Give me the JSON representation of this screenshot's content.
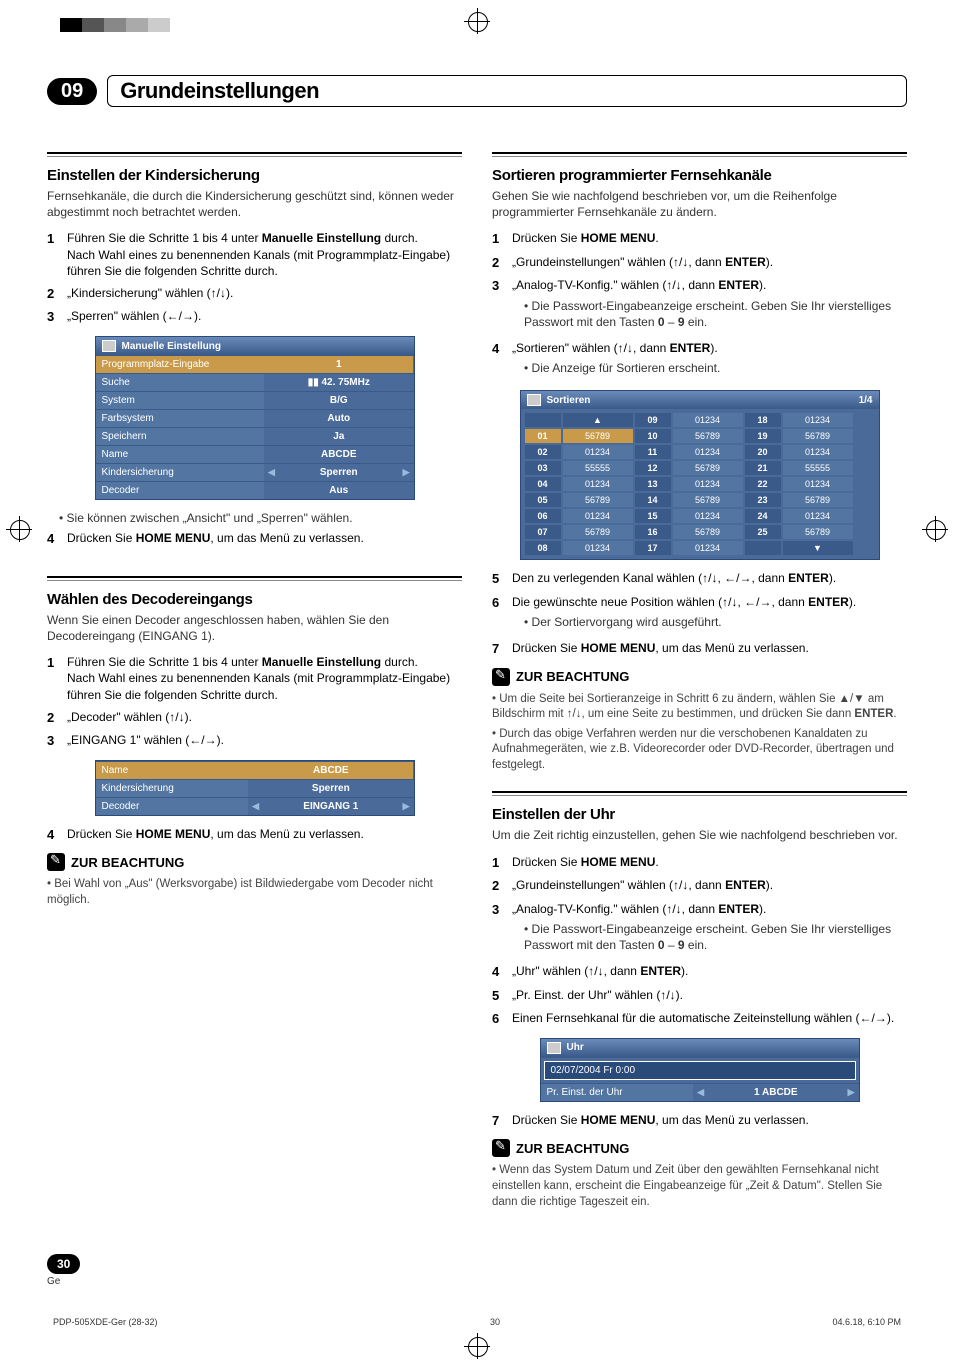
{
  "chapter": {
    "num": "09",
    "title": "Grundeinstellungen"
  },
  "left": {
    "sec1": {
      "title": "Einstellen der Kindersicherung",
      "intro": "Fernsehkanäle, die durch die Kindersicherung geschützt sind, können weder abgestimmt noch betrachtet werden.",
      "s1a": "Führen Sie die Schritte 1 bis 4 unter ",
      "s1b": "Manuelle Einstellung",
      "s1c": " durch.",
      "s1d": "Nach Wahl eines zu benennenden Kanals (mit Programmplatz-Eingabe) führen Sie die folgenden Schritte durch.",
      "s2": "„Kindersicherung\" wählen (↑/↓).",
      "s3": "„Sperren\" wählen (←/→).",
      "bul1": "Sie können zwischen „Ansicht\" und „Sperren\" wählen.",
      "s4a": "Drücken Sie ",
      "s4b": "HOME MENU",
      "s4c": ", um das Menü zu verlassen."
    },
    "osd1": {
      "title": "Manuelle Einstellung",
      "rows": [
        {
          "lbl": "Programmplatz-Eingabe",
          "val": "1",
          "hi": true
        },
        {
          "lbl": "Suche",
          "val": "▮▮   42. 75MHz"
        },
        {
          "lbl": "System",
          "val": "B/G"
        },
        {
          "lbl": "Farbsystem",
          "val": "Auto"
        },
        {
          "lbl": "Speichern",
          "val": "Ja"
        },
        {
          "lbl": "Name",
          "val": "ABCDE"
        },
        {
          "lbl": "Kindersicherung",
          "val": "Sperren",
          "arrows": true
        },
        {
          "lbl": "Decoder",
          "val": "Aus"
        }
      ]
    },
    "sec2": {
      "title": "Wählen des Decodereingangs",
      "intro": "Wenn Sie einen Decoder angeschlossen haben, wählen Sie den Decodereingang (EINGANG 1).",
      "s1a": "Führen Sie die Schritte 1 bis 4 unter ",
      "s1b": "Manuelle Einstellung",
      "s1c": " durch.",
      "s1d": "Nach Wahl eines zu benennenden Kanals (mit Programmplatz-Eingabe) führen Sie die folgenden Schritte durch.",
      "s2": "„Decoder\" wählen (↑/↓).",
      "s3": "„EINGANG 1\" wählen (←/→).",
      "s4a": "Drücken Sie ",
      "s4b": "HOME MENU",
      "s4c": ", um das Menü zu verlassen."
    },
    "osd2": {
      "rows": [
        {
          "lbl": "Name",
          "val": "ABCDE",
          "hi": true
        },
        {
          "lbl": "Kindersicherung",
          "val": "Sperren"
        },
        {
          "lbl": "Decoder",
          "val": "EINGANG 1",
          "arrows": true
        }
      ]
    },
    "note1": {
      "title": "ZUR BEACHTUNG",
      "b1": "Bei Wahl von „Aus\" (Werksvorgabe) ist Bildwiedergabe vom Decoder nicht möglich."
    }
  },
  "right": {
    "sec1": {
      "title": "Sortieren programmierter Fernsehkanäle",
      "intro": "Gehen Sie wie nachfolgend beschrieben vor, um die Reihenfolge programmierter Fernsehkanäle zu ändern.",
      "s1a": "Drücken Sie ",
      "s1b": "HOME MENU",
      "s1c": ".",
      "s2a": "„Grundeinstellungen\" wählen (↑/↓, dann ",
      "s2b": "ENTER",
      "s2c": ").",
      "s3a": "„Analog-TV-Konfig.\" wählen (↑/↓, dann ",
      "s3b": "ENTER",
      "s3c": ").",
      "s3d": "Die Passwort-Eingabeanzeige erscheint. Geben Sie Ihr vierstelliges Passwort mit den Tasten ",
      "s3e": "0",
      "s3f": " – ",
      "s3g": "9",
      "s3h": " ein.",
      "s4a": "„Sortieren\" wählen (↑/↓, dann ",
      "s4b": "ENTER",
      "s4c": ").",
      "s4d": "Die Anzeige für Sortieren erscheint.",
      "s5a": "Den zu verlegenden Kanal wählen (↑/↓, ←/→, dann ",
      "s5b": "ENTER",
      "s5c": ").",
      "s6a": "Die gewünschte neue Position wählen (↑/↓, ←/→, dann ",
      "s6b": "ENTER",
      "s6c": ").",
      "s6d": "Der Sortiervorgang wird ausgeführt.",
      "s7a": "Drücken Sie ",
      "s7b": "HOME MENU",
      "s7c": ", um das Menü zu verlassen."
    },
    "sort": {
      "title": "Sortieren",
      "page": "1/4",
      "grid": [
        [
          "",
          "▲",
          "09",
          "01234",
          "18",
          "01234"
        ],
        [
          "01",
          "56789",
          "10",
          "56789",
          "19",
          "56789"
        ],
        [
          "02",
          "01234",
          "11",
          "01234",
          "20",
          "01234"
        ],
        [
          "03",
          "55555",
          "12",
          "56789",
          "21",
          "55555"
        ],
        [
          "04",
          "01234",
          "13",
          "01234",
          "22",
          "01234"
        ],
        [
          "05",
          "56789",
          "14",
          "56789",
          "23",
          "56789"
        ],
        [
          "06",
          "01234",
          "15",
          "01234",
          "24",
          "01234"
        ],
        [
          "07",
          "56789",
          "16",
          "56789",
          "25",
          "56789"
        ],
        [
          "08",
          "01234",
          "17",
          "01234",
          "",
          "▼"
        ]
      ]
    },
    "note1": {
      "title": "ZUR BEACHTUNG",
      "b1": "Um die Seite bei Sortieranzeige in Schritt 6 zu ändern, wählen Sie ▲/▼ am Bildschirm mit ↑/↓, um eine Seite zu bestimmen, und drücken Sie dann ",
      "b1b": "ENTER",
      "b1c": ".",
      "b2": "Durch das obige Verfahren werden nur die verschobenen Kanaldaten zu  Aufnahmegeräten, wie z.B. Videorecorder oder DVD-Recorder, übertragen und festgelegt."
    },
    "sec2": {
      "title": "Einstellen der Uhr",
      "intro": "Um die Zeit richtig einzustellen, gehen Sie wie nachfolgend beschrieben vor.",
      "s1a": "Drücken Sie ",
      "s1b": "HOME MENU",
      "s1c": ".",
      "s2a": "„Grundeinstellungen\" wählen (↑/↓, dann ",
      "s2b": "ENTER",
      "s2c": ").",
      "s3a": "„Analog-TV-Konfig.\" wählen (↑/↓, dann ",
      "s3b": "ENTER",
      "s3c": ").",
      "s3d": "Die Passwort-Eingabeanzeige erscheint. Geben Sie Ihr vierstelliges Passwort mit den Tasten ",
      "s3e": "0",
      "s3f": " – ",
      "s3g": "9",
      "s3h": " ein.",
      "s4a": "„Uhr\" wählen (↑/↓, dann ",
      "s4b": "ENTER",
      "s4c": ").",
      "s5": "„Pr. Einst. der Uhr\" wählen (↑/↓).",
      "s6": "Einen Fernsehkanal für die automatische Zeiteinstellung wählen (←/→).",
      "s7a": "Drücken Sie ",
      "s7b": "HOME MENU",
      "s7c": ", um das Menü zu verlassen."
    },
    "osd3": {
      "title": "Uhr",
      "date": "02/07/2004 Fr  0:00",
      "lbl": "Pr. Einst. der Uhr",
      "val": "1  ABCDE"
    },
    "note2": {
      "title": "ZUR BEACHTUNG",
      "b1": "Wenn das System Datum und Zeit über den gewählten Fernsehkanal nicht einstellen kann, erscheint die Eingabeanzeige für „Zeit & Datum\". Stellen Sie dann die richtige Tageszeit ein."
    }
  },
  "foot": {
    "pg": "30",
    "lang": "Ge",
    "file": "PDP-505XDE-Ger (28-32)",
    "mid": "30",
    "ts": "04.6.18, 6:10 PM"
  }
}
